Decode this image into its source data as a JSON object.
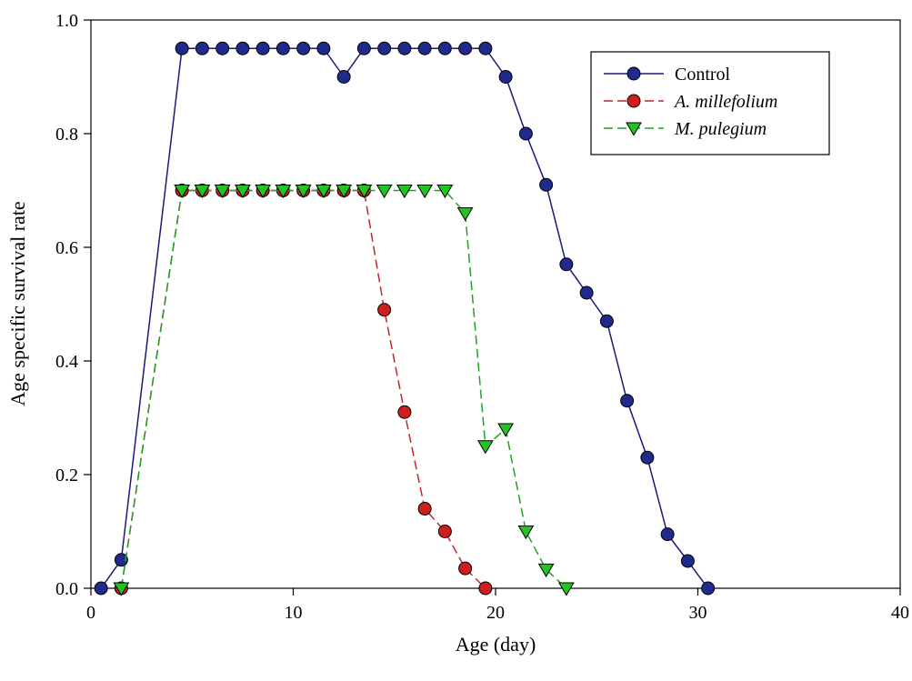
{
  "chart_data": {
    "type": "line",
    "xlabel": "Age (day)",
    "ylabel": "Age specific survival rate",
    "xlim": [
      0,
      40
    ],
    "ylim": [
      0,
      1.0
    ],
    "xticks": [
      0,
      10,
      20,
      30,
      40
    ],
    "yticks": [
      0.0,
      0.2,
      0.4,
      0.6,
      0.8,
      1.0
    ],
    "xtick_labels": [
      "0",
      "10",
      "20",
      "30",
      "40"
    ],
    "ytick_labels": [
      "0.0",
      "0.2",
      "0.4",
      "0.6",
      "0.8",
      "1.0"
    ],
    "grid": false,
    "legend_position": "top-right",
    "series": [
      {
        "name": "Control",
        "italic": false,
        "marker": "circle",
        "line_style": "solid",
        "line_color": "#1a1a7a",
        "marker_color": "#1f2a8c",
        "x": [
          0.5,
          1.5,
          4.5,
          5.5,
          6.5,
          7.5,
          8.5,
          9.5,
          10.5,
          11.5,
          12.5,
          13.5,
          14.5,
          15.5,
          16.5,
          17.5,
          18.5,
          19.5,
          20.5,
          21.5,
          22.5,
          23.5,
          24.5,
          25.5,
          26.5,
          27.5,
          28.5,
          29.5,
          30.5
        ],
        "y": [
          0.0,
          0.05,
          0.95,
          0.95,
          0.95,
          0.95,
          0.95,
          0.95,
          0.95,
          0.95,
          0.9,
          0.95,
          0.95,
          0.95,
          0.95,
          0.95,
          0.95,
          0.95,
          0.9,
          0.8,
          0.71,
          0.57,
          0.52,
          0.47,
          0.33,
          0.23,
          0.095,
          0.048,
          0.0
        ]
      },
      {
        "name": "A. millefolium",
        "italic": true,
        "marker": "circle",
        "line_style": "dashed",
        "line_color": "#c0272d",
        "marker_color": "#cc1f1f",
        "x": [
          1.5,
          4.5,
          5.5,
          6.5,
          7.5,
          8.5,
          9.5,
          10.5,
          11.5,
          12.5,
          13.5,
          14.5,
          15.5,
          16.5,
          17.5,
          18.5,
          19.5
        ],
        "y": [
          0.0,
          0.7,
          0.7,
          0.7,
          0.7,
          0.7,
          0.7,
          0.7,
          0.7,
          0.7,
          0.7,
          0.49,
          0.31,
          0.14,
          0.1,
          0.035,
          0.0
        ]
      },
      {
        "name": "M. pulegium",
        "italic": true,
        "marker": "triangle-down",
        "line_style": "dashed",
        "line_color": "#1fa51f",
        "marker_color": "#22c422",
        "x": [
          1.5,
          4.5,
          5.5,
          6.5,
          7.5,
          8.5,
          9.5,
          10.5,
          11.5,
          12.5,
          13.5,
          14.5,
          15.5,
          16.5,
          17.5,
          18.5,
          19.5,
          20.5,
          21.5,
          22.5,
          23.5
        ],
        "y": [
          0.0,
          0.7,
          0.7,
          0.7,
          0.7,
          0.7,
          0.7,
          0.7,
          0.7,
          0.7,
          0.7,
          0.7,
          0.7,
          0.7,
          0.7,
          0.66,
          0.25,
          0.28,
          0.1,
          0.033,
          0.0
        ]
      }
    ]
  }
}
